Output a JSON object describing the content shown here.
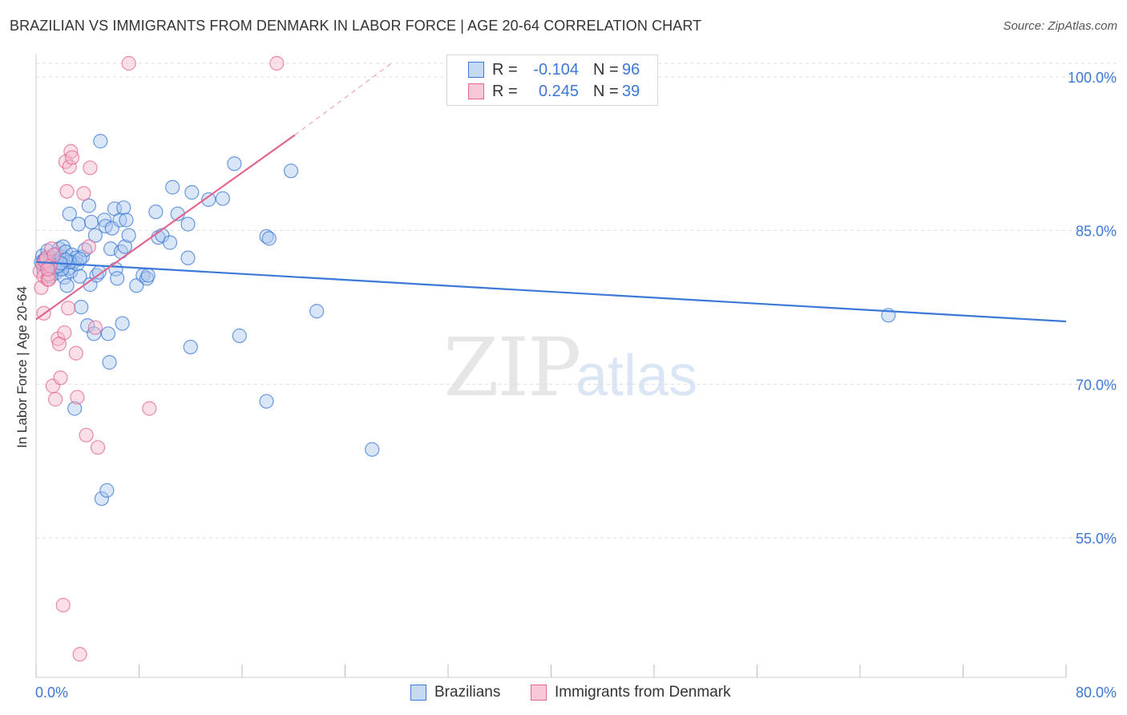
{
  "header": {
    "title": "BRAZILIAN VS IMMIGRANTS FROM DENMARK IN LABOR FORCE | AGE 20-64 CORRELATION CHART",
    "source": "Source: ZipAtlas.com"
  },
  "watermark": {
    "zip": "ZIP",
    "atlas": "atlas"
  },
  "legend": {
    "series1": {
      "r_label": "R =",
      "r_value": "-0.104",
      "n_label": "N =",
      "n_value": "96"
    },
    "series2": {
      "r_label": "R =",
      "r_value": "0.245",
      "n_label": "N =",
      "n_value": "39"
    }
  },
  "colors": {
    "blue": "#3b78d8",
    "blue_fill": "#aac8ee",
    "pink": "#e36591",
    "pink_fill": "#f5b8cc",
    "grid": "#dddddd"
  },
  "chart_data": {
    "type": "scatter",
    "title": "BRAZILIAN VS IMMIGRANTS FROM DENMARK IN LABOR FORCE | AGE 20-64 CORRELATION CHART",
    "xlabel": "",
    "ylabel": "In Labor Force | Age 20-64",
    "xlim": [
      0,
      80
    ],
    "ylim": [
      40,
      100
    ],
    "x_tick_labels": [
      "0.0%",
      "80.0%"
    ],
    "y_ticks": [
      55,
      70,
      85,
      100
    ],
    "y_tick_labels": [
      "55.0%",
      "70.0%",
      "85.0%",
      "100.0%"
    ],
    "grid": true,
    "series": [
      {
        "name": "Brazilians",
        "color": "#3b78d8",
        "points": [
          [
            0.4,
            80.6
          ],
          [
            0.5,
            81.2
          ],
          [
            0.6,
            79.8
          ],
          [
            0.7,
            80.9
          ],
          [
            0.8,
            80.2
          ],
          [
            0.9,
            81.7
          ],
          [
            1.0,
            80.5
          ],
          [
            1.1,
            79.2
          ],
          [
            1.2,
            81.0
          ],
          [
            1.3,
            80.1
          ],
          [
            1.4,
            80.8
          ],
          [
            1.5,
            79.5
          ],
          [
            1.6,
            81.4
          ],
          [
            1.7,
            80.7
          ],
          [
            1.8,
            81.9
          ],
          [
            1.9,
            80.3
          ],
          [
            2.0,
            81.1
          ],
          [
            2.1,
            82.1
          ],
          [
            2.2,
            79.1
          ],
          [
            2.3,
            81.6
          ],
          [
            2.4,
            78.3
          ],
          [
            2.5,
            80.0
          ],
          [
            2.6,
            85.3
          ],
          [
            2.7,
            79.7
          ],
          [
            2.8,
            81.3
          ],
          [
            2.9,
            80.6
          ],
          [
            3.0,
            66.3
          ],
          [
            3.1,
            81.0
          ],
          [
            3.2,
            80.4
          ],
          [
            3.3,
            84.3
          ],
          [
            3.4,
            79.2
          ],
          [
            3.5,
            76.2
          ],
          [
            3.6,
            81.1
          ],
          [
            3.8,
            81.8
          ],
          [
            4.0,
            74.4
          ],
          [
            4.1,
            86.1
          ],
          [
            4.2,
            78.4
          ],
          [
            4.3,
            84.5
          ],
          [
            4.5,
            73.6
          ],
          [
            4.6,
            83.2
          ],
          [
            4.7,
            79.3
          ],
          [
            4.9,
            79.6
          ],
          [
            5.0,
            92.4
          ],
          [
            5.1,
            57.5
          ],
          [
            5.3,
            84.7
          ],
          [
            5.4,
            84.1
          ],
          [
            5.5,
            58.3
          ],
          [
            5.6,
            73.6
          ],
          [
            5.7,
            70.8
          ],
          [
            5.8,
            81.9
          ],
          [
            5.9,
            83.9
          ],
          [
            6.1,
            85.8
          ],
          [
            6.2,
            79.9
          ],
          [
            6.3,
            79.0
          ],
          [
            6.5,
            84.7
          ],
          [
            6.6,
            81.6
          ],
          [
            6.7,
            74.6
          ],
          [
            6.8,
            85.9
          ],
          [
            6.9,
            82.1
          ],
          [
            7.0,
            84.7
          ],
          [
            7.2,
            83.2
          ],
          [
            7.8,
            78.3
          ],
          [
            8.3,
            79.3
          ],
          [
            8.6,
            79.0
          ],
          [
            8.7,
            79.3
          ],
          [
            9.3,
            85.5
          ],
          [
            9.5,
            83.0
          ],
          [
            9.8,
            83.2
          ],
          [
            10.4,
            82.5
          ],
          [
            10.6,
            87.9
          ],
          [
            11.0,
            85.3
          ],
          [
            11.8,
            84.3
          ],
          [
            12.0,
            72.3
          ],
          [
            12.1,
            87.4
          ],
          [
            11.8,
            81.0
          ],
          [
            13.4,
            86.7
          ],
          [
            14.5,
            86.8
          ],
          [
            15.4,
            90.2
          ],
          [
            15.8,
            73.4
          ],
          [
            17.9,
            83.1
          ],
          [
            17.9,
            67.0
          ],
          [
            18.1,
            82.9
          ],
          [
            19.8,
            89.5
          ],
          [
            21.8,
            75.8
          ],
          [
            26.1,
            62.3
          ],
          [
            66.2,
            75.4
          ],
          [
            0.9,
            80.3
          ],
          [
            1.4,
            80.1
          ],
          [
            2.0,
            79.9
          ],
          [
            2.6,
            80.6
          ],
          [
            3.4,
            80.9
          ],
          [
            1.1,
            80.4
          ],
          [
            1.7,
            80.2
          ],
          [
            2.3,
            80.8
          ],
          [
            0.6,
            80.7
          ],
          [
            1.9,
            80.5
          ]
        ]
      },
      {
        "name": "Immigrants from Denmark",
        "color": "#e36591",
        "points": [
          [
            0.3,
            79.7
          ],
          [
            0.4,
            78.1
          ],
          [
            0.5,
            80.4
          ],
          [
            0.6,
            79.2
          ],
          [
            0.7,
            80.7
          ],
          [
            0.8,
            81.0
          ],
          [
            0.9,
            78.9
          ],
          [
            1.0,
            79.4
          ],
          [
            1.1,
            80.2
          ],
          [
            1.2,
            81.9
          ],
          [
            0.6,
            75.6
          ],
          [
            1.3,
            68.5
          ],
          [
            1.5,
            67.2
          ],
          [
            1.7,
            73.1
          ],
          [
            1.8,
            72.6
          ],
          [
            1.9,
            69.3
          ],
          [
            2.1,
            47.1
          ],
          [
            2.2,
            73.7
          ],
          [
            2.3,
            90.4
          ],
          [
            2.4,
            87.5
          ],
          [
            2.5,
            76.1
          ],
          [
            2.6,
            89.9
          ],
          [
            2.7,
            91.4
          ],
          [
            2.8,
            90.8
          ],
          [
            3.1,
            71.7
          ],
          [
            3.2,
            67.4
          ],
          [
            3.4,
            42.3
          ],
          [
            3.7,
            87.3
          ],
          [
            3.9,
            63.7
          ],
          [
            4.1,
            82.1
          ],
          [
            4.2,
            89.8
          ],
          [
            4.6,
            74.2
          ],
          [
            4.8,
            62.5
          ],
          [
            7.2,
            100.0
          ],
          [
            8.8,
            66.3
          ],
          [
            18.7,
            100.0
          ],
          [
            1.0,
            78.9
          ],
          [
            1.4,
            81.3
          ],
          [
            0.9,
            79.9
          ]
        ]
      }
    ],
    "trend_lines": [
      {
        "series": "Brazilians",
        "x": [
          0,
          80
        ],
        "y": [
          80.6,
          74.8
        ]
      },
      {
        "series": "Immigrants from Denmark",
        "x": [
          0,
          20.1
        ],
        "y": [
          75.0,
          93.0
        ]
      },
      {
        "series": "Immigrants from Denmark (extrapolated)",
        "x": [
          20.1,
          27.6
        ],
        "y": [
          93.0,
          100.0
        ]
      }
    ]
  }
}
